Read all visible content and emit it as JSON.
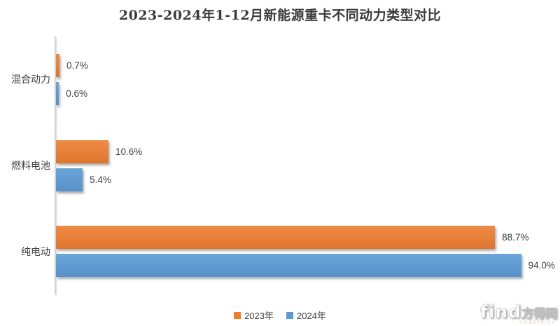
{
  "chart_data": {
    "type": "bar",
    "orientation": "horizontal",
    "title": "2023-2024年1-12月新能源重卡不同动力类型对比",
    "categories": [
      "混合动力",
      "燃料电池",
      "纯电动"
    ],
    "series": [
      {
        "name": "2023年",
        "color": "#ED7D31",
        "values": [
          0.7,
          10.6,
          88.7
        ],
        "labels": [
          "0.7%",
          "10.6%",
          "88.7%"
        ]
      },
      {
        "name": "2024年",
        "color": "#5B9BD5",
        "values": [
          0.6,
          5.4,
          94.0
        ],
        "labels": [
          "0.6%",
          "5.4%",
          "94.0%"
        ]
      }
    ],
    "xlim": [
      0,
      100
    ],
    "grid": false,
    "legend_position": "bottom",
    "axis_color": "#d4d4d4",
    "label_color": "#404040"
  },
  "watermark": {
    "brand_latin": "find",
    "brand_cn": "方得网",
    "sub_text": "find800.cn"
  }
}
